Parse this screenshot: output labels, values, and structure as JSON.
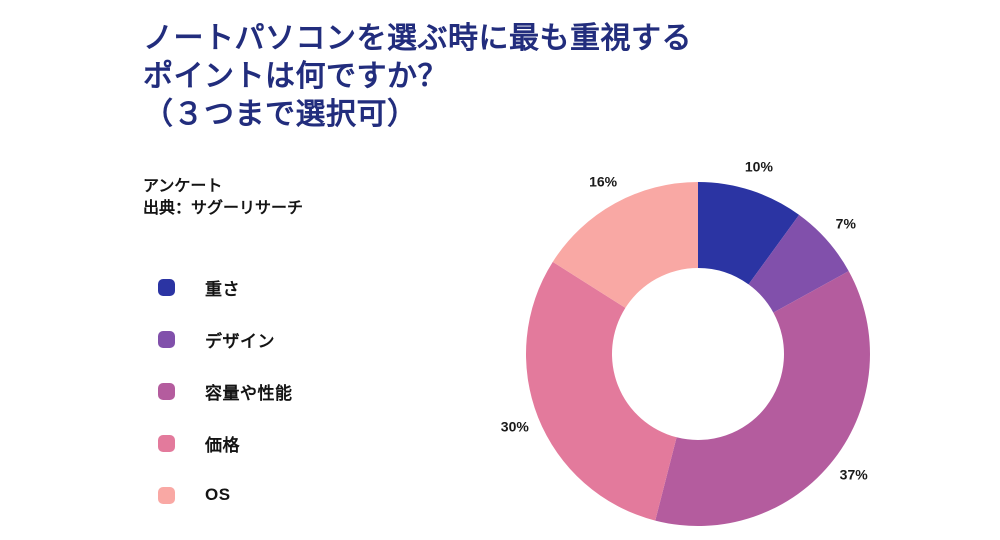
{
  "title": {
    "lines": [
      "ノートパソコンを選ぶ時に最も重視する",
      "ポイントは何ですか？",
      "（３つまで選択可）"
    ]
  },
  "source": {
    "lines": [
      "アンケート",
      "出典：サグーリサーチ"
    ]
  },
  "colors": {
    "title_text": "#222d7d",
    "body_text": "#141414",
    "background": "#ffffff"
  },
  "chart_data": {
    "type": "pie",
    "subtype": "donut",
    "title": "ノートパソコンを選ぶ時に最も重視するポイントは何ですか？（３つまで選択可）",
    "categories": [
      "重さ",
      "デザイン",
      "容量や性能",
      "価格",
      "OS"
    ],
    "values": [
      10,
      7,
      37,
      30,
      16
    ],
    "unit": "%",
    "slice_labels": [
      "10%",
      "7%",
      "37%",
      "30%",
      "16%"
    ],
    "colors": [
      "#2b34a3",
      "#8150ab",
      "#b45c9e",
      "#e37a9c",
      "#f9a8a4"
    ],
    "start_angle_deg": 0,
    "direction": "clockwise",
    "inner_radius_ratio": 0.5,
    "legend_position": "left",
    "labels_position": "outside"
  }
}
